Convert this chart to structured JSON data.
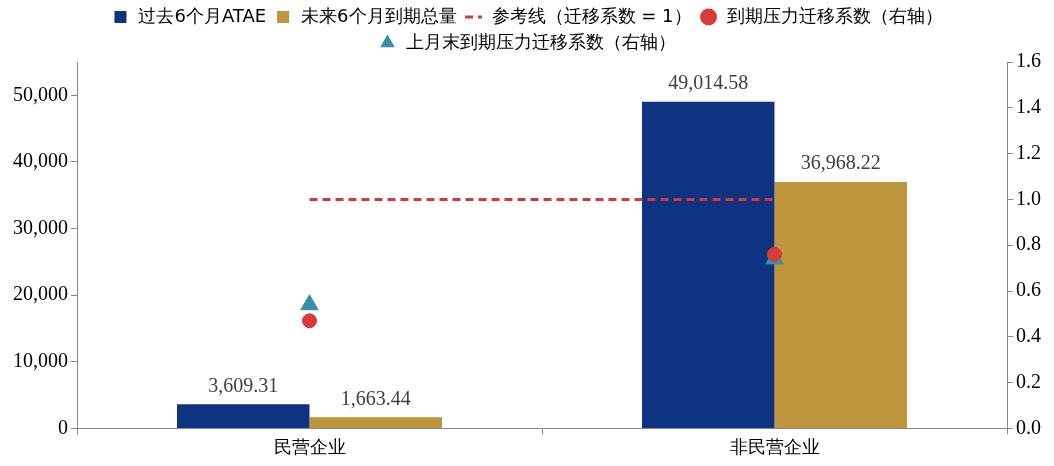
{
  "chart_data": {
    "type": "bar",
    "categories": [
      "民营企业",
      "非民营企业"
    ],
    "series": [
      {
        "name": "过去6个月ATAE",
        "color": "#0e3481",
        "values": [
          3609.31,
          49014.58
        ],
        "value_labels": [
          "3,609.31",
          "49,014.58"
        ]
      },
      {
        "name": "未来6个月到期总量",
        "color": "#c0963c",
        "values": [
          1663.44,
          36968.22
        ],
        "value_labels": [
          "1,663.44",
          "36,968.22"
        ]
      },
      {
        "name": "参考线（迁移系数 = 1）",
        "type": "line",
        "axis": "y2",
        "color": "#d9363b",
        "line_style": "dashed",
        "marker": "none",
        "values": [
          1,
          1
        ]
      },
      {
        "name": "到期压力迁移系数（右轴）",
        "type": "scatter",
        "axis": "y2",
        "color": "#d93a3a",
        "marker": "circle",
        "x": [
          "民营企业",
          "非民营企业"
        ],
        "values": [
          0.47,
          0.76
        ]
      },
      {
        "name": "上月末到期压力迁移系数（右轴）",
        "type": "scatter",
        "axis": "y2",
        "color": "#3a8ea5",
        "marker": "triangle",
        "x": [
          "民营企业",
          "非民营企业"
        ],
        "values": [
          0.54,
          0.74
        ]
      }
    ],
    "ylim": [
      0,
      55000
    ],
    "yticks": [
      0,
      {
        "value": 10000,
        "label": "10,000"
      },
      {
        "value": 20000,
        "label": "20,000"
      },
      {
        "value": 30000,
        "label": "30,000"
      },
      {
        "value": 40000,
        "label": "40,000"
      },
      {
        "value": 50000,
        "label": "50,000"
      }
    ],
    "y2lim": [
      0,
      1.6
    ],
    "y2ticks": [
      {
        "value": 0,
        "label": "0.0"
      },
      {
        "value": 0.2,
        "label": "0.2"
      },
      {
        "value": 0.4,
        "label": "0.4"
      },
      {
        "value": 0.6,
        "label": "0.6"
      },
      {
        "value": 0.8,
        "label": "0.8"
      },
      {
        "value": 1,
        "label": "1.0"
      },
      {
        "value": 1.2,
        "label": "1.2"
      },
      {
        "value": 1.4,
        "label": "1.4"
      },
      {
        "value": 1.6,
        "label": "1.6"
      }
    ],
    "grid": false,
    "legend": "top"
  }
}
